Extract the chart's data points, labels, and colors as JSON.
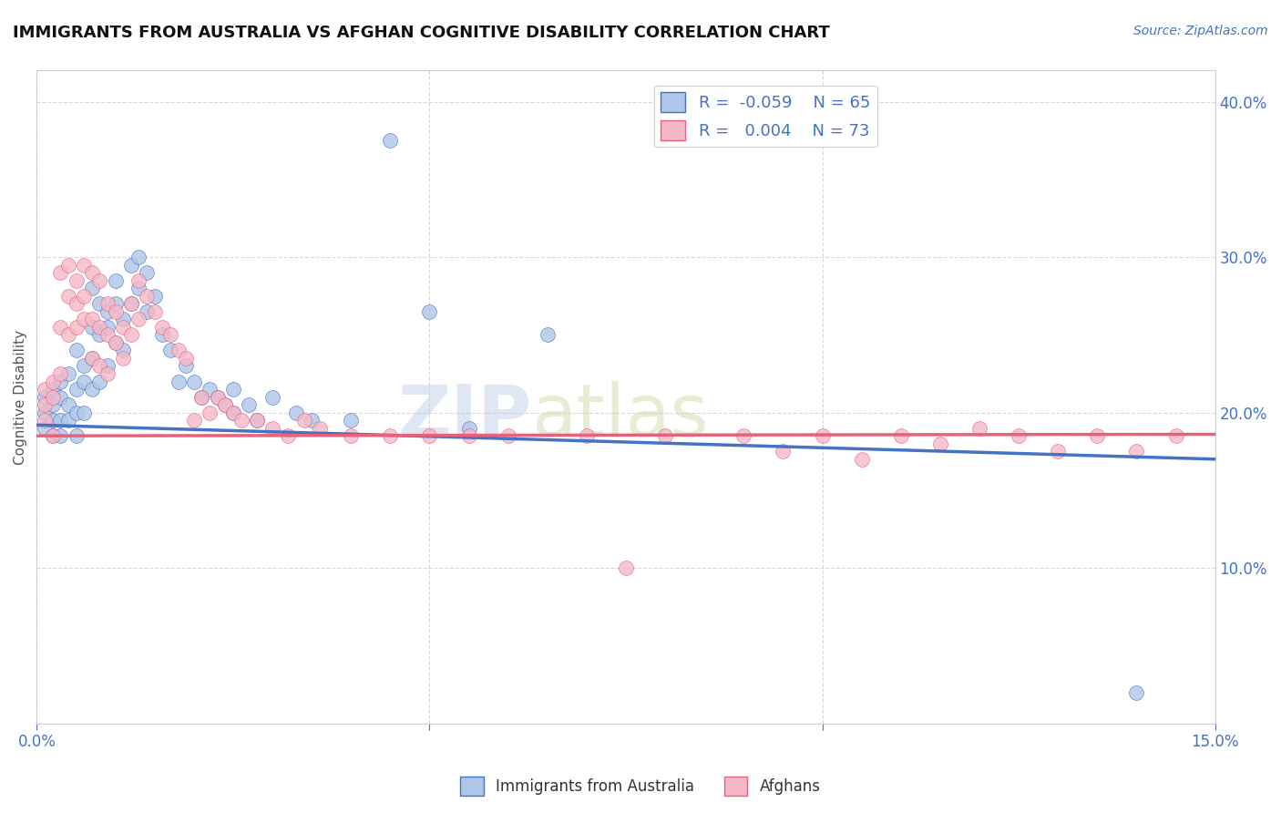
{
  "title": "IMMIGRANTS FROM AUSTRALIA VS AFGHAN COGNITIVE DISABILITY CORRELATION CHART",
  "source": "Source: ZipAtlas.com",
  "ylabel": "Cognitive Disability",
  "watermark": "ZIPatlas",
  "xlim": [
    0.0,
    0.15
  ],
  "ylim": [
    0.0,
    0.42
  ],
  "ytick_positions": [
    0.0,
    0.1,
    0.2,
    0.3,
    0.4
  ],
  "ytick_labels_right": [
    "",
    "10.0%",
    "20.0%",
    "30.0%",
    "40.0%"
  ],
  "xtick_positions": [
    0.0,
    0.05,
    0.1,
    0.15
  ],
  "xtick_labels": [
    "0.0%",
    "",
    "",
    "15.0%"
  ],
  "legend_R1": "-0.059",
  "legend_N1": "65",
  "legend_R2": "0.004",
  "legend_N2": "73",
  "color_blue": "#aec6e8",
  "color_pink": "#f4b8c8",
  "line_blue": "#4472c4",
  "line_pink": "#e8607a",
  "title_fontsize": 13,
  "blue_scatter": [
    [
      0.001,
      0.21
    ],
    [
      0.001,
      0.2
    ],
    [
      0.001,
      0.19
    ],
    [
      0.002,
      0.215
    ],
    [
      0.002,
      0.205
    ],
    [
      0.002,
      0.195
    ],
    [
      0.002,
      0.185
    ],
    [
      0.003,
      0.22
    ],
    [
      0.003,
      0.21
    ],
    [
      0.003,
      0.195
    ],
    [
      0.003,
      0.185
    ],
    [
      0.004,
      0.225
    ],
    [
      0.004,
      0.205
    ],
    [
      0.004,
      0.195
    ],
    [
      0.005,
      0.24
    ],
    [
      0.005,
      0.215
    ],
    [
      0.005,
      0.2
    ],
    [
      0.005,
      0.185
    ],
    [
      0.006,
      0.23
    ],
    [
      0.006,
      0.22
    ],
    [
      0.006,
      0.2
    ],
    [
      0.007,
      0.28
    ],
    [
      0.007,
      0.255
    ],
    [
      0.007,
      0.235
    ],
    [
      0.007,
      0.215
    ],
    [
      0.008,
      0.27
    ],
    [
      0.008,
      0.25
    ],
    [
      0.008,
      0.22
    ],
    [
      0.009,
      0.265
    ],
    [
      0.009,
      0.255
    ],
    [
      0.009,
      0.23
    ],
    [
      0.01,
      0.285
    ],
    [
      0.01,
      0.27
    ],
    [
      0.01,
      0.245
    ],
    [
      0.011,
      0.26
    ],
    [
      0.011,
      0.24
    ],
    [
      0.012,
      0.295
    ],
    [
      0.012,
      0.27
    ],
    [
      0.013,
      0.3
    ],
    [
      0.013,
      0.28
    ],
    [
      0.014,
      0.29
    ],
    [
      0.014,
      0.265
    ],
    [
      0.015,
      0.275
    ],
    [
      0.016,
      0.25
    ],
    [
      0.017,
      0.24
    ],
    [
      0.018,
      0.22
    ],
    [
      0.019,
      0.23
    ],
    [
      0.02,
      0.22
    ],
    [
      0.021,
      0.21
    ],
    [
      0.022,
      0.215
    ],
    [
      0.023,
      0.21
    ],
    [
      0.024,
      0.205
    ],
    [
      0.025,
      0.215
    ],
    [
      0.025,
      0.2
    ],
    [
      0.027,
      0.205
    ],
    [
      0.028,
      0.195
    ],
    [
      0.03,
      0.21
    ],
    [
      0.033,
      0.2
    ],
    [
      0.035,
      0.195
    ],
    [
      0.04,
      0.195
    ],
    [
      0.045,
      0.375
    ],
    [
      0.05,
      0.265
    ],
    [
      0.055,
      0.19
    ],
    [
      0.065,
      0.25
    ],
    [
      0.14,
      0.02
    ]
  ],
  "pink_scatter": [
    [
      0.001,
      0.215
    ],
    [
      0.001,
      0.205
    ],
    [
      0.001,
      0.195
    ],
    [
      0.002,
      0.22
    ],
    [
      0.002,
      0.21
    ],
    [
      0.002,
      0.185
    ],
    [
      0.003,
      0.29
    ],
    [
      0.003,
      0.255
    ],
    [
      0.003,
      0.225
    ],
    [
      0.004,
      0.295
    ],
    [
      0.004,
      0.275
    ],
    [
      0.004,
      0.25
    ],
    [
      0.005,
      0.285
    ],
    [
      0.005,
      0.27
    ],
    [
      0.005,
      0.255
    ],
    [
      0.006,
      0.295
    ],
    [
      0.006,
      0.275
    ],
    [
      0.006,
      0.26
    ],
    [
      0.007,
      0.29
    ],
    [
      0.007,
      0.26
    ],
    [
      0.007,
      0.235
    ],
    [
      0.008,
      0.285
    ],
    [
      0.008,
      0.255
    ],
    [
      0.008,
      0.23
    ],
    [
      0.009,
      0.27
    ],
    [
      0.009,
      0.25
    ],
    [
      0.009,
      0.225
    ],
    [
      0.01,
      0.265
    ],
    [
      0.01,
      0.245
    ],
    [
      0.011,
      0.255
    ],
    [
      0.011,
      0.235
    ],
    [
      0.012,
      0.27
    ],
    [
      0.012,
      0.25
    ],
    [
      0.013,
      0.285
    ],
    [
      0.013,
      0.26
    ],
    [
      0.014,
      0.275
    ],
    [
      0.015,
      0.265
    ],
    [
      0.016,
      0.255
    ],
    [
      0.017,
      0.25
    ],
    [
      0.018,
      0.24
    ],
    [
      0.019,
      0.235
    ],
    [
      0.02,
      0.195
    ],
    [
      0.021,
      0.21
    ],
    [
      0.022,
      0.2
    ],
    [
      0.023,
      0.21
    ],
    [
      0.024,
      0.205
    ],
    [
      0.025,
      0.2
    ],
    [
      0.026,
      0.195
    ],
    [
      0.028,
      0.195
    ],
    [
      0.03,
      0.19
    ],
    [
      0.032,
      0.185
    ],
    [
      0.034,
      0.195
    ],
    [
      0.036,
      0.19
    ],
    [
      0.04,
      0.185
    ],
    [
      0.045,
      0.185
    ],
    [
      0.05,
      0.185
    ],
    [
      0.055,
      0.185
    ],
    [
      0.06,
      0.185
    ],
    [
      0.07,
      0.185
    ],
    [
      0.075,
      0.1
    ],
    [
      0.08,
      0.185
    ],
    [
      0.09,
      0.185
    ],
    [
      0.095,
      0.175
    ],
    [
      0.1,
      0.185
    ],
    [
      0.105,
      0.17
    ],
    [
      0.11,
      0.185
    ],
    [
      0.115,
      0.18
    ],
    [
      0.12,
      0.19
    ],
    [
      0.125,
      0.185
    ],
    [
      0.13,
      0.175
    ],
    [
      0.135,
      0.185
    ],
    [
      0.14,
      0.175
    ],
    [
      0.145,
      0.185
    ]
  ],
  "blue_line_x": [
    0.0,
    0.15
  ],
  "blue_line_y": [
    0.192,
    0.17
  ],
  "pink_line_x": [
    0.0,
    0.15
  ],
  "pink_line_y": [
    0.185,
    0.186
  ],
  "grid_color": "#d8d8d8",
  "bg_color": "#ffffff"
}
